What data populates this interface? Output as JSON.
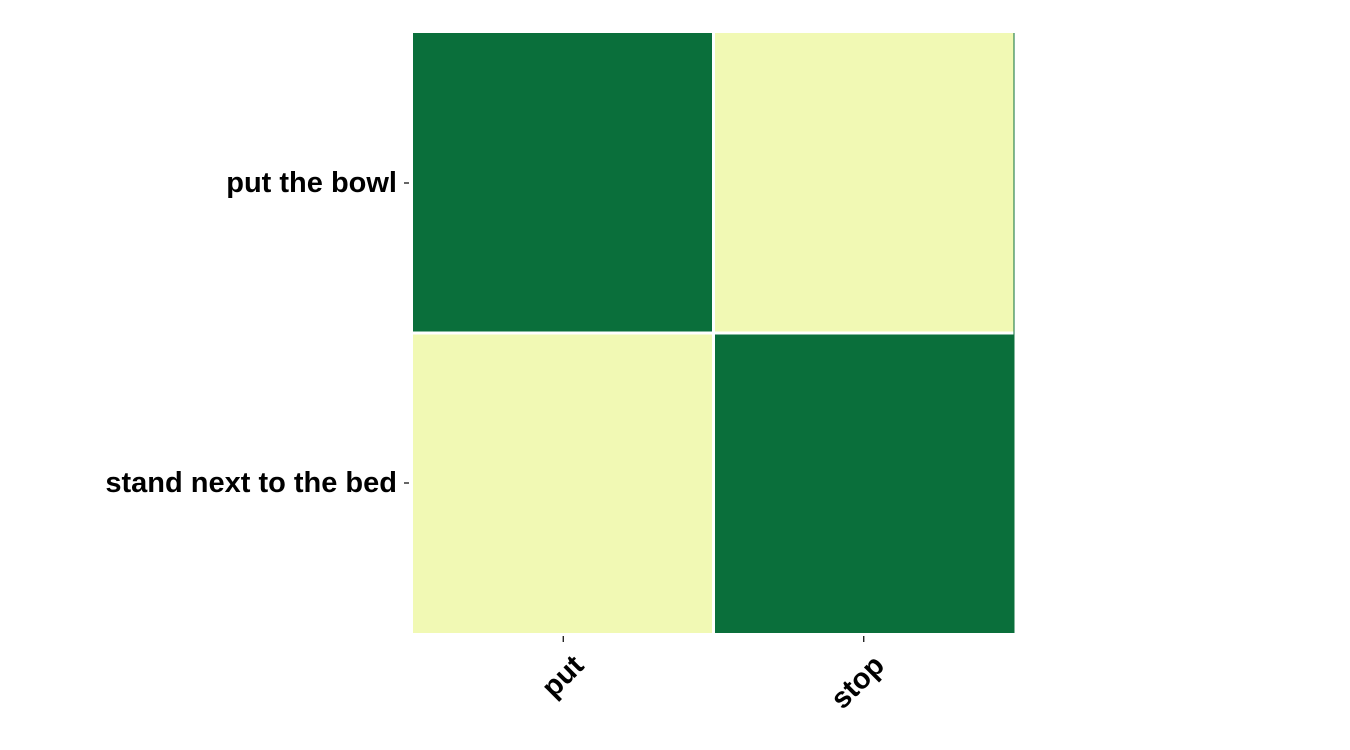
{
  "chart_data": {
    "type": "heatmap",
    "rows": [
      "put the bowl",
      "stand next to the bed"
    ],
    "columns": [
      "put",
      "stop"
    ],
    "values": [
      [
        1.0,
        0.1
      ],
      [
        0.1,
        1.0
      ]
    ],
    "color_scale": {
      "low": "#f1f9b4",
      "high": "#0a6f3b"
    },
    "grid": false,
    "legend": "none"
  }
}
